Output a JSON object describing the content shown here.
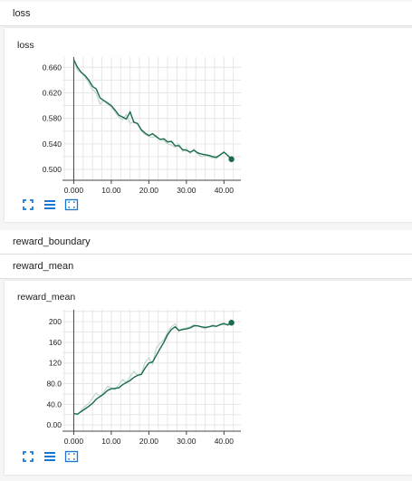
{
  "header": {
    "title": "loss"
  },
  "loss_card": {
    "title": "loss"
  },
  "reward_boundary_header": {
    "title": "reward_boundary"
  },
  "reward_mean_header": {
    "title": "reward_mean"
  },
  "reward_mean_card": {
    "title": "reward_mean"
  },
  "accent_color": "#1a6b49",
  "smoothed_color": "#bfd7cb",
  "toolbar_color": "#1976d2",
  "chart_data": [
    {
      "type": "line",
      "title": "loss",
      "xlim": [
        -3.0,
        44.5
      ],
      "ylim": [
        0.483,
        0.676
      ],
      "x_ticks": [
        0,
        10,
        20,
        30,
        40
      ],
      "x_tick_labels": [
        "0.000",
        "10.00",
        "20.00",
        "30.00",
        "40.00"
      ],
      "y_ticks": [
        0.5,
        0.54,
        0.58,
        0.62,
        0.66
      ],
      "y_tick_labels": [
        "0.500",
        "0.540",
        "0.580",
        "0.620",
        "0.660"
      ],
      "grid": true,
      "series": [
        {
          "role": "raw",
          "x": [
            0,
            1,
            2,
            3,
            4,
            5,
            6,
            7,
            8,
            9,
            10,
            11,
            12,
            13,
            14,
            15,
            16,
            17,
            18,
            19,
            20,
            21,
            22,
            23,
            24,
            25,
            26,
            27,
            28,
            29,
            30,
            31,
            32,
            33,
            34,
            35,
            36,
            37,
            38,
            39,
            40,
            41,
            42
          ],
          "values": [
            0.672,
            0.655,
            0.652,
            0.645,
            0.636,
            0.625,
            0.62,
            0.602,
            0.608,
            0.602,
            0.598,
            0.59,
            0.582,
            0.578,
            0.586,
            0.572,
            0.575,
            0.571,
            0.56,
            0.555,
            0.552,
            0.55,
            0.553,
            0.547,
            0.545,
            0.54,
            0.538,
            0.535,
            0.54,
            0.528,
            0.533,
            0.525,
            0.532,
            0.524,
            0.52,
            0.522,
            0.52,
            0.518,
            0.517,
            0.522,
            0.528,
            0.521,
            0.516
          ]
        },
        {
          "role": "smoothed",
          "x": [
            0,
            1,
            2,
            3,
            4,
            5,
            6,
            7,
            8,
            9,
            10,
            11,
            12,
            13,
            14,
            15,
            16,
            17,
            18,
            19,
            20,
            21,
            22,
            23,
            24,
            25,
            26,
            27,
            28,
            29,
            30,
            31,
            32,
            33,
            34,
            35,
            36,
            37,
            38,
            39,
            40,
            41,
            42
          ],
          "values": [
            0.672,
            0.66,
            0.652,
            0.647,
            0.64,
            0.63,
            0.626,
            0.612,
            0.608,
            0.604,
            0.6,
            0.593,
            0.585,
            0.582,
            0.579,
            0.59,
            0.574,
            0.572,
            0.562,
            0.557,
            0.553,
            0.556,
            0.551,
            0.547,
            0.548,
            0.543,
            0.544,
            0.537,
            0.537,
            0.531,
            0.53,
            0.527,
            0.53,
            0.526,
            0.524,
            0.523,
            0.522,
            0.52,
            0.519,
            0.523,
            0.527,
            0.522,
            0.516
          ]
        }
      ]
    },
    {
      "type": "line",
      "title": "reward_mean",
      "xlim": [
        -3.0,
        44.5
      ],
      "ylim": [
        -12,
        223
      ],
      "x_ticks": [
        0,
        10,
        20,
        30,
        40
      ],
      "x_tick_labels": [
        "0.000",
        "10.00",
        "20.00",
        "30.00",
        "40.00"
      ],
      "y_ticks": [
        0,
        40,
        80,
        120,
        160,
        200
      ],
      "y_tick_labels": [
        "0.00",
        "40.0",
        "80.0",
        "120",
        "160",
        "200"
      ],
      "grid": true,
      "series": [
        {
          "role": "raw",
          "x": [
            0,
            1,
            2,
            3,
            4,
            5,
            6,
            7,
            8,
            9,
            10,
            11,
            12,
            13,
            14,
            15,
            16,
            17,
            18,
            19,
            20,
            21,
            22,
            23,
            24,
            25,
            26,
            27,
            28,
            29,
            30,
            31,
            32,
            33,
            34,
            35,
            36,
            37,
            38,
            39,
            40,
            41,
            42
          ],
          "values": [
            22,
            20,
            28,
            36,
            42,
            52,
            62,
            55,
            64,
            75,
            72,
            68,
            78,
            88,
            82,
            94,
            104,
            96,
            100,
            120,
            130,
            118,
            150,
            158,
            165,
            180,
            190,
            196,
            182,
            186,
            188,
            190,
            194,
            192,
            189,
            186,
            190,
            194,
            190,
            196,
            198,
            192,
            198
          ]
        },
        {
          "role": "smoothed",
          "x": [
            0,
            1,
            2,
            3,
            4,
            5,
            6,
            7,
            8,
            9,
            10,
            11,
            12,
            13,
            14,
            15,
            16,
            17,
            18,
            19,
            20,
            21,
            22,
            23,
            24,
            25,
            26,
            27,
            28,
            29,
            30,
            31,
            32,
            33,
            34,
            35,
            36,
            37,
            38,
            39,
            40,
            41,
            42
          ],
          "values": [
            22,
            21,
            26,
            31,
            36,
            42,
            50,
            55,
            60,
            67,
            70,
            71,
            72,
            78,
            82,
            86,
            92,
            96,
            98,
            110,
            120,
            122,
            135,
            148,
            160,
            175,
            185,
            190,
            183,
            185,
            186,
            188,
            192,
            192,
            190,
            189,
            190,
            192,
            191,
            194,
            196,
            194,
            198
          ]
        }
      ]
    }
  ]
}
